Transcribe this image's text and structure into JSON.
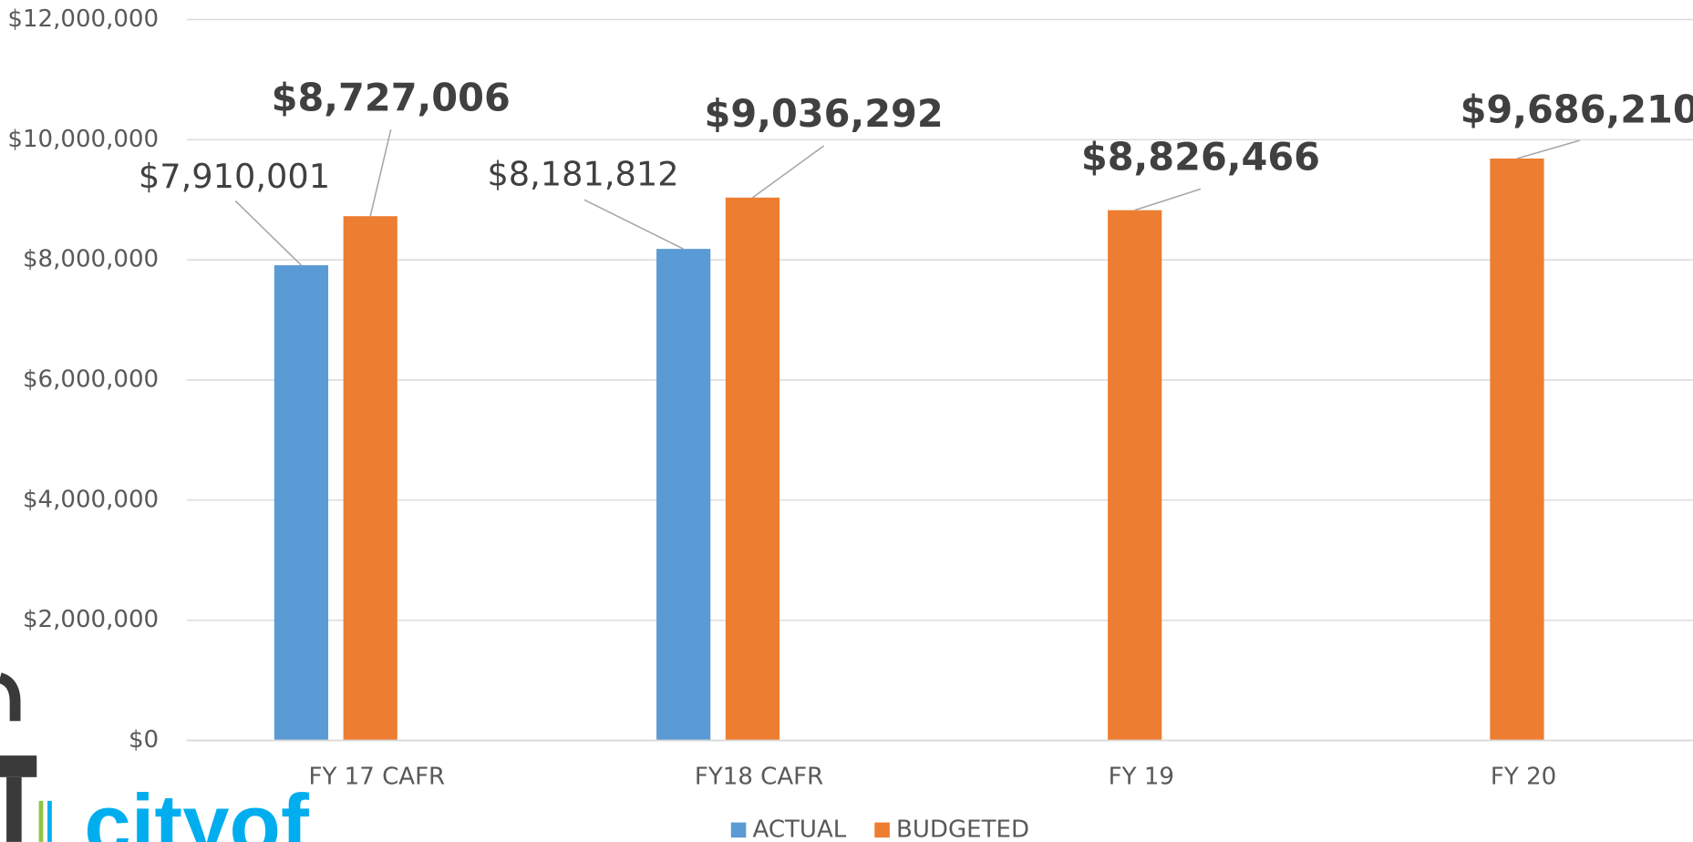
{
  "chart_data": {
    "type": "bar",
    "categories": [
      "FY 17 CAFR",
      "FY18 CAFR",
      "FY 19",
      "FY 20"
    ],
    "series": [
      {
        "name": "ACTUAL",
        "color": "#5b9bd5",
        "values": [
          7910001,
          8181812,
          null,
          null
        ],
        "value_labels": [
          "$7,910,001",
          "$8,181,812",
          null,
          null
        ]
      },
      {
        "name": "BUDGETED",
        "color": "#ed7d31",
        "values": [
          8727006,
          9036292,
          8826466,
          9686210
        ],
        "value_labels": [
          "$8,727,006",
          "$9,036,292",
          "$8,826,466",
          "$9,686,210"
        ]
      }
    ],
    "ylim": [
      0,
      12000000
    ],
    "yticks": [
      {
        "value": 0,
        "label": "$0"
      },
      {
        "value": 2000000,
        "label": "$2,000,000"
      },
      {
        "value": 4000000,
        "label": "$4,000,000"
      },
      {
        "value": 6000000,
        "label": "$6,000,000"
      },
      {
        "value": 8000000,
        "label": "$8,000,000"
      },
      {
        "value": 10000000,
        "label": "$10,000,000"
      },
      {
        "value": 12000000,
        "label": "$12,000,000"
      }
    ],
    "grid": true,
    "legend": "bottom"
  },
  "logo": {
    "text": "cityof"
  }
}
